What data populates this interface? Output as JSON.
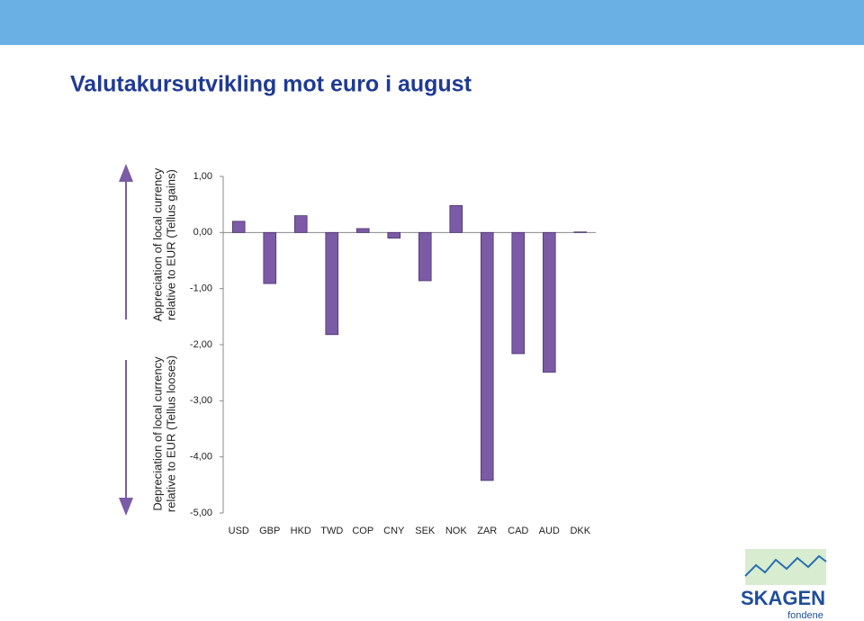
{
  "chart_data": {
    "type": "bar",
    "title": "Valutakursutvikling mot euro i august",
    "categories": [
      "USD",
      "GBP",
      "HKD",
      "TWD",
      "COP",
      "CNY",
      "SEK",
      "NOK",
      "ZAR",
      "CAD",
      "AUD",
      "DKK"
    ],
    "values": [
      0.2,
      -0.91,
      0.3,
      -1.82,
      0.07,
      -0.1,
      -0.86,
      0.48,
      -4.42,
      -2.16,
      -2.49,
      0.01
    ],
    "color": "#7b5ba6",
    "ylim": [
      -5,
      1
    ],
    "yticks": [
      {
        "value": 1,
        "label": "1,00"
      },
      {
        "value": 0,
        "label": "0,00"
      },
      {
        "value": -1,
        "label": "-1,00"
      },
      {
        "value": -2,
        "label": "-2,00"
      },
      {
        "value": -3,
        "label": "-3,00"
      },
      {
        "value": -4,
        "label": "-4,00"
      },
      {
        "value": -5,
        "label": "-5,00"
      }
    ],
    "annotations": [
      [
        "Appreciation of local currency",
        "relative to EUR (Tellus  gains)"
      ],
      [
        "Depreciation of local currency",
        "relative to EUR (Tellus  looses)"
      ]
    ]
  },
  "logo": {
    "name": "SKAGEN",
    "tagline": "fondene"
  }
}
